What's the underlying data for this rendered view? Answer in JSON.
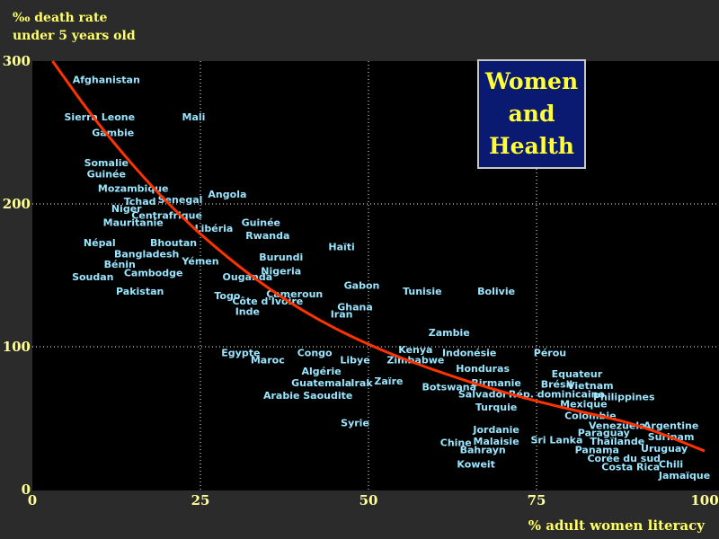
{
  "colors": {
    "background": "#2b2b2b",
    "plot_background": "#000000",
    "country_label": "#99e6ff",
    "axis_label": "#ffff66",
    "tick_label": "#ffff99",
    "curve": "#ff3300",
    "title_box_bg": "#0a1a70",
    "title_text": "#ffff33"
  },
  "title_box": {
    "line1": "Women",
    "line2": "and",
    "line3": "Health"
  },
  "chart_data": {
    "type": "scatter",
    "title": "Women and Health",
    "ylabel_line1": "‰ death rate",
    "ylabel_line2": "under 5 years old",
    "xlabel": "% adult women literacy",
    "xlim": [
      0,
      100
    ],
    "ylim": [
      0,
      300
    ],
    "xticks": [
      0,
      25,
      50,
      75,
      100
    ],
    "yticks": [
      0,
      100,
      200,
      300
    ],
    "grid": "dotted",
    "trend_curve": [
      [
        3,
        300
      ],
      [
        10,
        254
      ],
      [
        20,
        200
      ],
      [
        30,
        158
      ],
      [
        40,
        125
      ],
      [
        50,
        101
      ],
      [
        60,
        83
      ],
      [
        70,
        68
      ],
      [
        80,
        56
      ],
      [
        90,
        46
      ],
      [
        100,
        27
      ]
    ],
    "points": [
      {
        "label": "Afghanistan",
        "x": 11,
        "y": 287
      },
      {
        "label": "Sierra Leone",
        "x": 10,
        "y": 261
      },
      {
        "label": "Mali",
        "x": 24,
        "y": 261
      },
      {
        "label": "Gambie",
        "x": 12,
        "y": 250
      },
      {
        "label": "Somalie",
        "x": 11,
        "y": 229
      },
      {
        "label": "Guinée",
        "x": 11,
        "y": 221
      },
      {
        "label": "Mozambique",
        "x": 15,
        "y": 211
      },
      {
        "label": "Angola",
        "x": 29,
        "y": 207
      },
      {
        "label": "Tchad",
        "x": 16,
        "y": 202
      },
      {
        "label": "Senegal",
        "x": 22,
        "y": 203
      },
      {
        "label": "Niger",
        "x": 14,
        "y": 197
      },
      {
        "label": "Centrafrique",
        "x": 20,
        "y": 192
      },
      {
        "label": "Mauritanie",
        "x": 15,
        "y": 187
      },
      {
        "label": "Guinée",
        "x": 34,
        "y": 187
      },
      {
        "label": "Libéria",
        "x": 27,
        "y": 183
      },
      {
        "label": "Rwanda",
        "x": 35,
        "y": 178
      },
      {
        "label": "Népal",
        "x": 10,
        "y": 173
      },
      {
        "label": "Bhoutan",
        "x": 21,
        "y": 173
      },
      {
        "label": "Haïti",
        "x": 46,
        "y": 170
      },
      {
        "label": "Bangladesh",
        "x": 17,
        "y": 165
      },
      {
        "label": "Burundi",
        "x": 37,
        "y": 163
      },
      {
        "label": "Yémen",
        "x": 25,
        "y": 160
      },
      {
        "label": "Bénin",
        "x": 13,
        "y": 158
      },
      {
        "label": "Cambodge",
        "x": 18,
        "y": 152
      },
      {
        "label": "Nigeria",
        "x": 37,
        "y": 153
      },
      {
        "label": "Soudan",
        "x": 9,
        "y": 149
      },
      {
        "label": "Ouganda",
        "x": 32,
        "y": 149
      },
      {
        "label": "Gabon",
        "x": 49,
        "y": 143
      },
      {
        "label": "Pakistan",
        "x": 16,
        "y": 139
      },
      {
        "label": "Tunisie",
        "x": 58,
        "y": 139
      },
      {
        "label": "Bolivie",
        "x": 69,
        "y": 139
      },
      {
        "label": "Togo",
        "x": 29,
        "y": 136
      },
      {
        "label": "Cameroun",
        "x": 39,
        "y": 137
      },
      {
        "label": "Côte d'Ivoire",
        "x": 35,
        "y": 132
      },
      {
        "label": "Ghana",
        "x": 48,
        "y": 128
      },
      {
        "label": "Inde",
        "x": 32,
        "y": 125
      },
      {
        "label": "Iran",
        "x": 46,
        "y": 123
      },
      {
        "label": "Zambie",
        "x": 62,
        "y": 110
      },
      {
        "label": "Kenya",
        "x": 57,
        "y": 98
      },
      {
        "label": "Egypte",
        "x": 31,
        "y": 96
      },
      {
        "label": "Congo",
        "x": 42,
        "y": 96
      },
      {
        "label": "Indonésie",
        "x": 65,
        "y": 96
      },
      {
        "label": "Pérou",
        "x": 77,
        "y": 96
      },
      {
        "label": "Maroc",
        "x": 35,
        "y": 91
      },
      {
        "label": "Libye",
        "x": 48,
        "y": 91
      },
      {
        "label": "Zimbabwe",
        "x": 57,
        "y": 91
      },
      {
        "label": "Honduras",
        "x": 67,
        "y": 85
      },
      {
        "label": "Algérie",
        "x": 43,
        "y": 83
      },
      {
        "label": "Equateur",
        "x": 81,
        "y": 81
      },
      {
        "label": "Zaïre",
        "x": 53,
        "y": 76
      },
      {
        "label": "Guatemala",
        "x": 43,
        "y": 75
      },
      {
        "label": "Irak",
        "x": 49,
        "y": 75
      },
      {
        "label": "Birmanie",
        "x": 69,
        "y": 75
      },
      {
        "label": "Brésil",
        "x": 78,
        "y": 74
      },
      {
        "label": "Vietnam",
        "x": 83,
        "y": 73
      },
      {
        "label": "Botswana",
        "x": 62,
        "y": 72
      },
      {
        "label": "Salvador",
        "x": 67,
        "y": 67
      },
      {
        "label": "Rép. dominicaine",
        "x": 78,
        "y": 67
      },
      {
        "label": "Arabie Saoudite",
        "x": 41,
        "y": 66
      },
      {
        "label": "Philippines",
        "x": 88,
        "y": 65
      },
      {
        "label": "Turquie",
        "x": 69,
        "y": 58
      },
      {
        "label": "Mexique",
        "x": 82,
        "y": 60
      },
      {
        "label": "Colombie",
        "x": 83,
        "y": 52
      },
      {
        "label": "Venezuela",
        "x": 87,
        "y": 45
      },
      {
        "label": "Argentine",
        "x": 95,
        "y": 45
      },
      {
        "label": "Syrie",
        "x": 48,
        "y": 47
      },
      {
        "label": "Jordanie",
        "x": 69,
        "y": 42
      },
      {
        "label": "Paraguay",
        "x": 85,
        "y": 40
      },
      {
        "label": "Surinam",
        "x": 95,
        "y": 37
      },
      {
        "label": "Sri Lanka",
        "x": 78,
        "y": 35
      },
      {
        "label": "Thaïlande",
        "x": 87,
        "y": 34
      },
      {
        "label": "Malaisie",
        "x": 69,
        "y": 34
      },
      {
        "label": "Chine",
        "x": 63,
        "y": 33
      },
      {
        "label": "Bahrayn",
        "x": 67,
        "y": 28
      },
      {
        "label": "Panama",
        "x": 84,
        "y": 28
      },
      {
        "label": "Uruguay",
        "x": 94,
        "y": 29
      },
      {
        "label": "Corée du sud",
        "x": 88,
        "y": 22
      },
      {
        "label": "Koweit",
        "x": 66,
        "y": 18
      },
      {
        "label": "Chili",
        "x": 95,
        "y": 18
      },
      {
        "label": "Costa Rica",
        "x": 89,
        "y": 16
      },
      {
        "label": "Jamaïque",
        "x": 97,
        "y": 10
      }
    ]
  }
}
